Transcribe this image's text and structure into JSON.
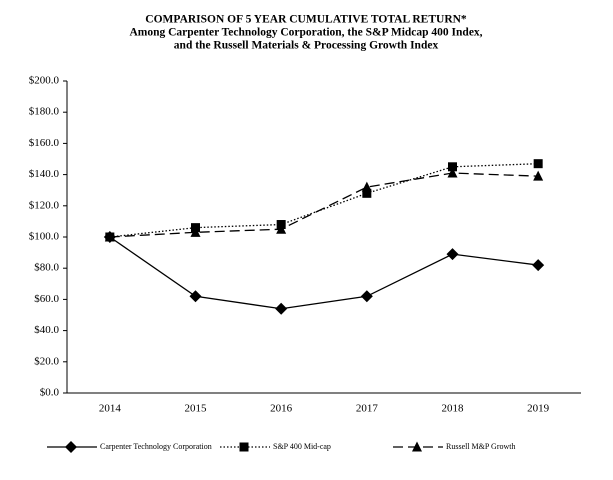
{
  "chart_data": {
    "type": "line",
    "title": "COMPARISON OF 5 YEAR CUMULATIVE TOTAL RETURN*",
    "subtitle": [
      "Among Carpenter Technology Corporation, the S&P Midcap 400 Index,",
      "and the Russell Materials & Processing Growth Index"
    ],
    "categories": [
      "2014",
      "2015",
      "2016",
      "2017",
      "2018",
      "2019"
    ],
    "series": [
      {
        "name": "Carpenter Technology Corporation",
        "color": "#000000",
        "line_style": "solid",
        "marker": "diamond",
        "values": [
          100,
          62,
          54,
          62,
          89,
          82
        ]
      },
      {
        "name": "S&P 400 Mid-cap",
        "color": "#000000",
        "line_style": "dotted",
        "marker": "square",
        "values": [
          100,
          106,
          108,
          128,
          145,
          147
        ]
      },
      {
        "name": "Russell M&P Growth",
        "color": "#000000",
        "line_style": "dashed",
        "marker": "triangle",
        "values": [
          100,
          103,
          105,
          132,
          141,
          139
        ]
      }
    ],
    "ylim": [
      0,
      200
    ],
    "yticks": [
      {
        "value": 0,
        "label": "$0.0"
      },
      {
        "value": 20,
        "label": "$20.0"
      },
      {
        "value": 40,
        "label": "$40.0"
      },
      {
        "value": 60,
        "label": "$60.0"
      },
      {
        "value": 80,
        "label": "$80.0"
      },
      {
        "value": 100,
        "label": "$100.0"
      },
      {
        "value": 120,
        "label": "$120.0"
      },
      {
        "value": 140,
        "label": "$140.0"
      },
      {
        "value": 160,
        "label": "$160.0"
      },
      {
        "value": 180,
        "label": "$180.0"
      },
      {
        "value": 200,
        "label": "$200.0"
      }
    ],
    "grid": false,
    "legend": "bottom"
  }
}
